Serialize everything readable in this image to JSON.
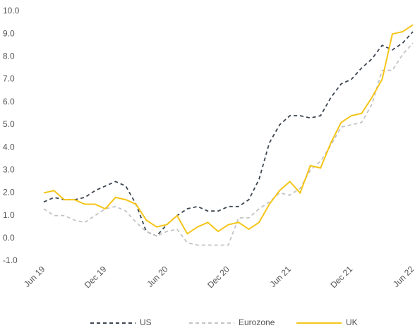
{
  "chart_data": {
    "type": "line",
    "categories": [
      "Jun 19",
      null,
      null,
      null,
      null,
      null,
      "Dec 19",
      null,
      null,
      null,
      null,
      null,
      "Jun 20",
      null,
      null,
      null,
      null,
      null,
      "Dec 20",
      null,
      null,
      null,
      null,
      null,
      "Jun 21",
      null,
      null,
      null,
      null,
      null,
      "Dec 21",
      null,
      null,
      null,
      null,
      null,
      "Jun 22"
    ],
    "series": [
      {
        "name": "US",
        "color": "#3d4650",
        "dash": "dashed",
        "values": [
          1.6,
          1.8,
          1.7,
          1.7,
          1.8,
          2.1,
          2.3,
          2.5,
          2.3,
          1.5,
          0.3,
          0.1,
          0.6,
          1.0,
          1.3,
          1.4,
          1.2,
          1.2,
          1.4,
          1.4,
          1.7,
          2.6,
          4.2,
          5.0,
          5.4,
          5.4,
          5.3,
          5.4,
          6.2,
          6.8,
          7.0,
          7.5,
          7.9,
          8.5,
          8.3,
          8.6,
          9.1
        ]
      },
      {
        "name": "Eurozone",
        "color": "#c4c4c4",
        "dash": "dashed",
        "values": [
          1.3,
          1.0,
          1.0,
          0.8,
          0.7,
          1.0,
          1.3,
          1.4,
          1.2,
          0.7,
          0.3,
          0.1,
          0.3,
          0.4,
          -0.2,
          -0.3,
          -0.3,
          -0.3,
          -0.3,
          0.9,
          0.9,
          1.3,
          1.6,
          2.0,
          1.9,
          2.2,
          3.0,
          3.4,
          4.1,
          4.9,
          5.0,
          5.1,
          5.9,
          7.4,
          7.4,
          8.1,
          8.6
        ]
      },
      {
        "name": "UK",
        "color": "#f5c518",
        "dash": "solid",
        "values": [
          2.0,
          2.1,
          1.7,
          1.7,
          1.5,
          1.5,
          1.3,
          1.8,
          1.7,
          1.5,
          0.8,
          0.5,
          0.6,
          1.0,
          0.2,
          0.5,
          0.7,
          0.3,
          0.6,
          0.7,
          0.4,
          0.7,
          1.5,
          2.1,
          2.5,
          2.0,
          3.2,
          3.1,
          4.2,
          5.1,
          5.4,
          5.5,
          6.2,
          7.0,
          9.0,
          9.1,
          9.4
        ]
      }
    ],
    "ylim": [
      -1,
      10
    ],
    "yticks": [
      {
        "value": -1,
        "label": "-1.0"
      },
      {
        "value": 0,
        "label": "0.0"
      },
      {
        "value": 1,
        "label": "1.0"
      },
      {
        "value": 2,
        "label": "2.0"
      },
      {
        "value": 3,
        "label": "3.0"
      },
      {
        "value": 4,
        "label": "4.0"
      },
      {
        "value": 5,
        "label": "5.0"
      },
      {
        "value": 6,
        "label": "6.0"
      },
      {
        "value": 7,
        "label": "7.0"
      },
      {
        "value": 8,
        "label": "8.0"
      },
      {
        "value": 9,
        "label": "9.0"
      },
      {
        "value": 10,
        "label": "10.0"
      }
    ],
    "grid": false,
    "legend": "bottom"
  }
}
